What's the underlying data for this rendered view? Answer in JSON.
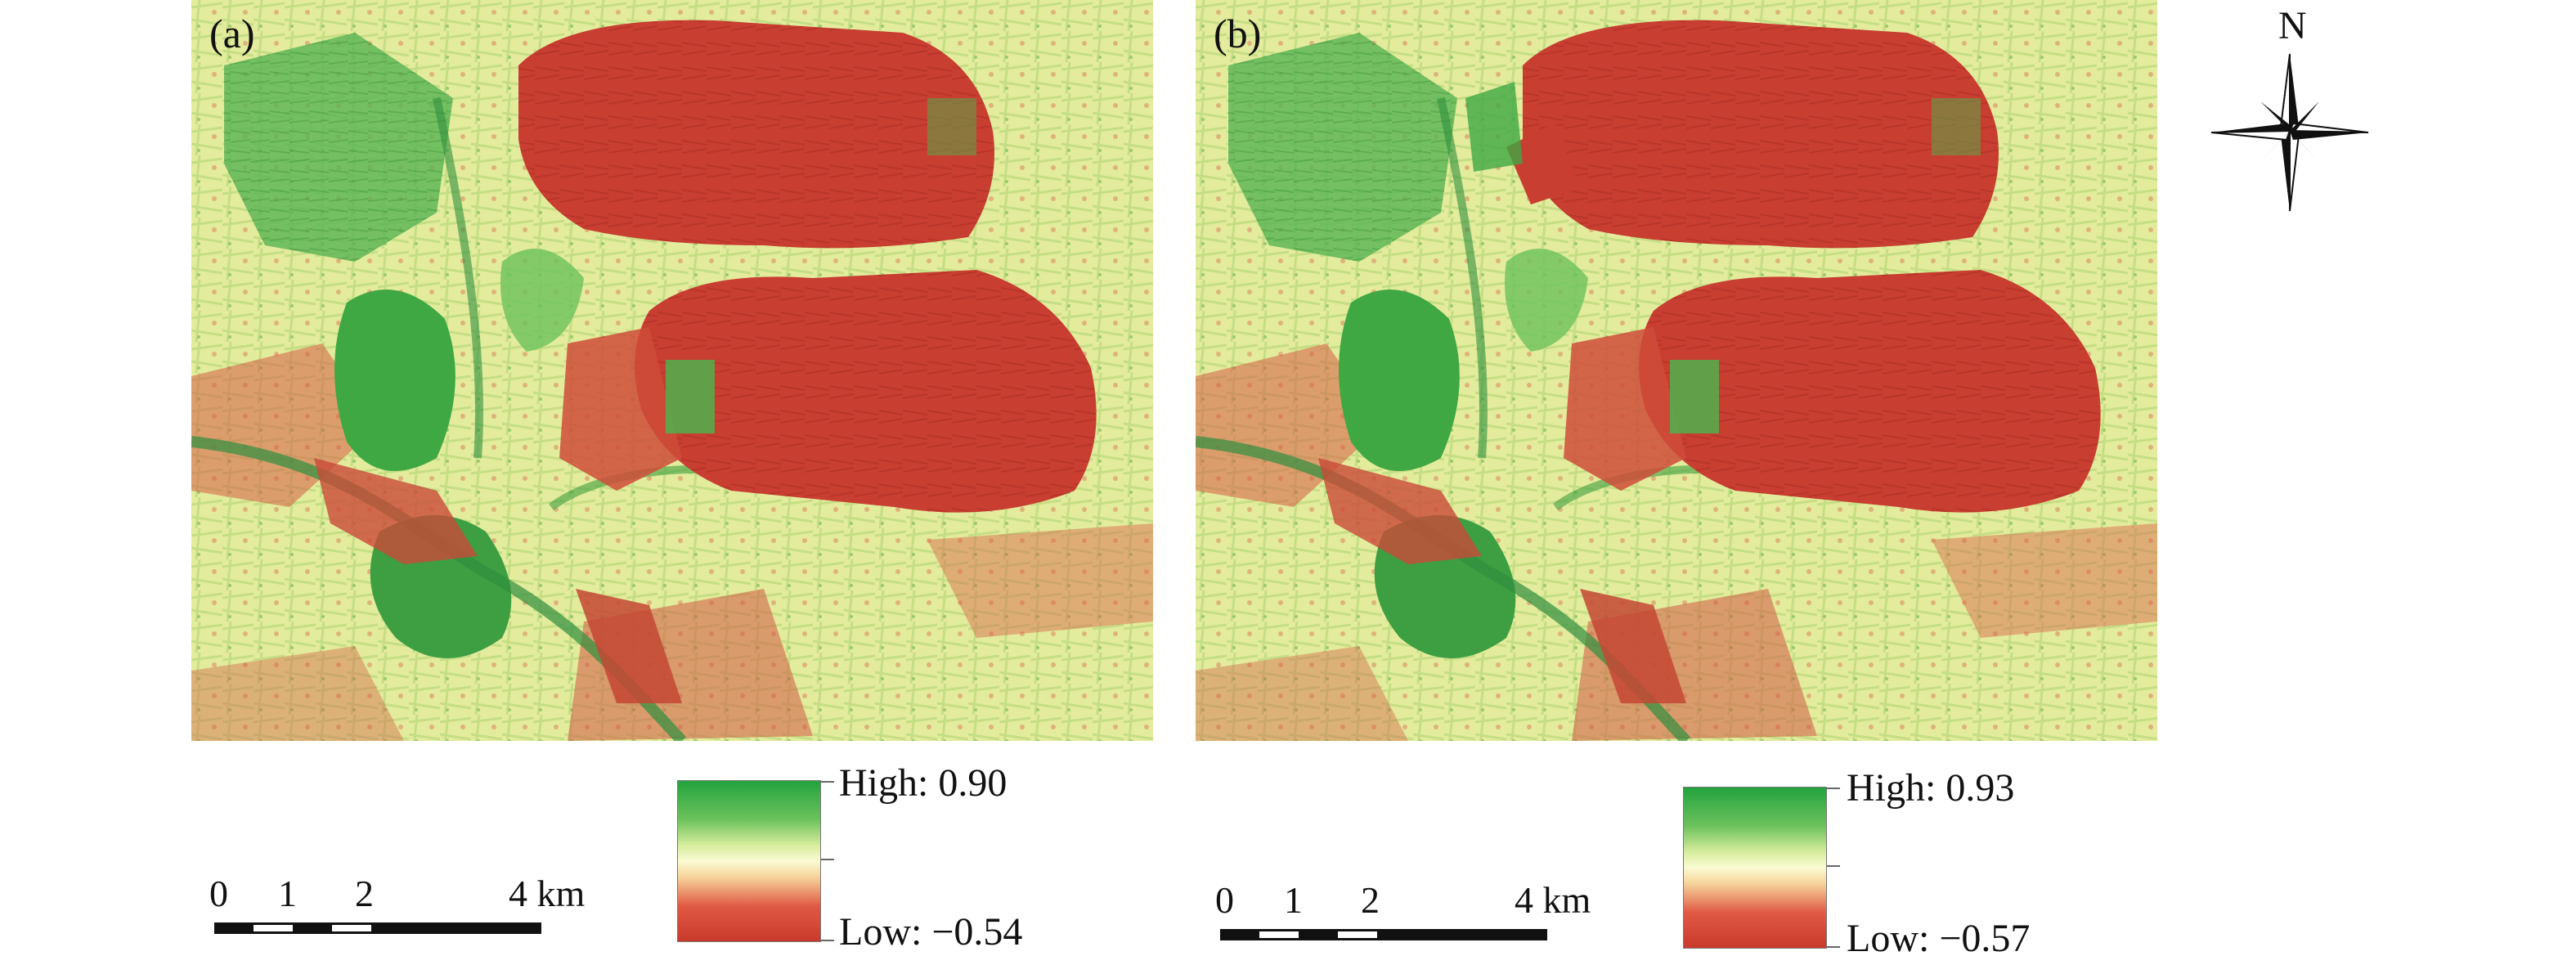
{
  "figure": {
    "panels": [
      {
        "id": "a",
        "label": "(a)",
        "legend": {
          "high_text": "High: 0.90",
          "low_text": "Low: −0.54"
        },
        "scale_bar": {
          "ticks": [
            "0",
            "1",
            "2",
            "4 km"
          ]
        }
      },
      {
        "id": "b",
        "label": "(b)",
        "legend": {
          "high_text": "High: 0.93",
          "low_text": "Low: −0.57"
        },
        "scale_bar": {
          "ticks": [
            "0",
            "1",
            "2",
            "4 km"
          ]
        }
      }
    ],
    "north_arrow": {
      "label": "N"
    },
    "colors": {
      "high": "#23a33f",
      "mid": "#fbfbd4",
      "low": "#c93a2c",
      "background_terrain": "#e3eb9c"
    }
  }
}
